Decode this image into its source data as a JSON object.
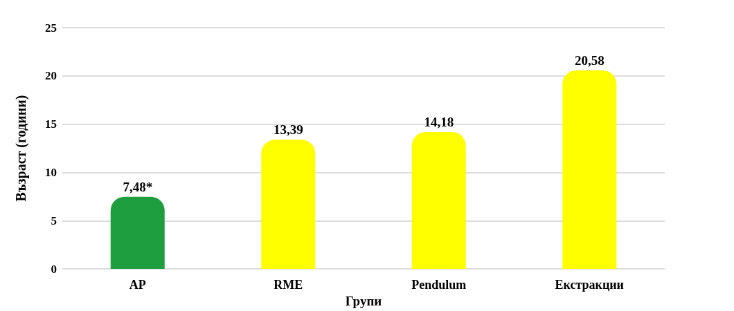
{
  "chart_data": {
    "type": "bar",
    "xlabel": "Групи",
    "ylabel": "Възраст (години)",
    "categories": [
      "AP",
      "RME",
      "Pendulum",
      "Екстракции"
    ],
    "values": [
      7.48,
      13.39,
      14.18,
      20.58
    ],
    "value_labels": [
      "7,48*",
      "13,39",
      "14,18",
      "20,58"
    ],
    "colors": [
      "#1e9e3e",
      "#ffff00",
      "#ffff00",
      "#ffff00"
    ],
    "ylim": [
      0,
      25
    ],
    "yticks": [
      0,
      5,
      10,
      15,
      20,
      25
    ],
    "grid": "y"
  }
}
